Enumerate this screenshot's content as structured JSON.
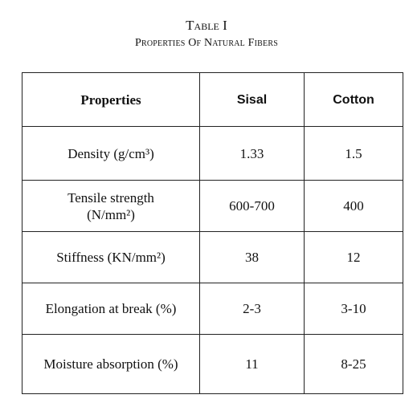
{
  "header": {
    "title": "Table I",
    "subtitle": "Properties Of Natural Fibers"
  },
  "table": {
    "columns": [
      "Properties",
      "Sisal",
      "Cotton"
    ],
    "rows": [
      [
        "Density (g/cm³)",
        "1.33",
        "1.5"
      ],
      [
        "Tensile strength (N/mm²)",
        "600-700",
        "400"
      ],
      [
        "Stiffness (KN/mm²)",
        "38",
        "12"
      ],
      [
        "Elongation at break (%)",
        "2-3",
        "3-10"
      ],
      [
        "Moisture absorption (%)",
        "11",
        "8-25"
      ]
    ]
  }
}
